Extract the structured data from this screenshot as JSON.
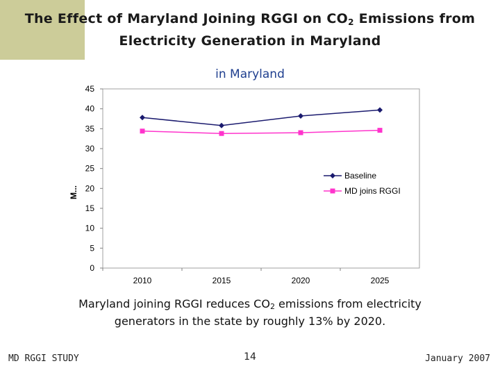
{
  "slide": {
    "title_part1": "The Effect of Maryland Joining RGGI on CO",
    "title_sub": "2",
    "title_part2": " Emissions from",
    "title_line2": "Electricity Generation in Maryland",
    "caption_part1": "Maryland joining RGGI reduces CO",
    "caption_sub": "2",
    "caption_part2": " emissions from electricity generators in the state by roughly 13% by 2020.",
    "footer_left": "MD RGGI STUDY",
    "page_number": "14",
    "footer_right": "January 2007"
  },
  "colors": {
    "corner_block": "#cccc99",
    "baseline": "#1a1a6e",
    "md_joins": "#ff33cc"
  },
  "chart_data": {
    "type": "line",
    "title": "in Maryland",
    "xlabel": "",
    "ylabel": "M...",
    "categories": [
      "2010",
      "2015",
      "2020",
      "2025"
    ],
    "ylim": [
      0,
      45
    ],
    "yticks": [
      0,
      5,
      10,
      15,
      20,
      25,
      30,
      35,
      40,
      45
    ],
    "series": [
      {
        "name": "Baseline",
        "values": [
          37.8,
          35.8,
          38.2,
          39.7
        ],
        "color": "#1a1a6e",
        "marker": "diamond"
      },
      {
        "name": "MD joins RGGI",
        "values": [
          34.4,
          33.8,
          34.0,
          34.6
        ],
        "color": "#ff33cc",
        "marker": "square"
      }
    ],
    "legend_position": "right"
  }
}
